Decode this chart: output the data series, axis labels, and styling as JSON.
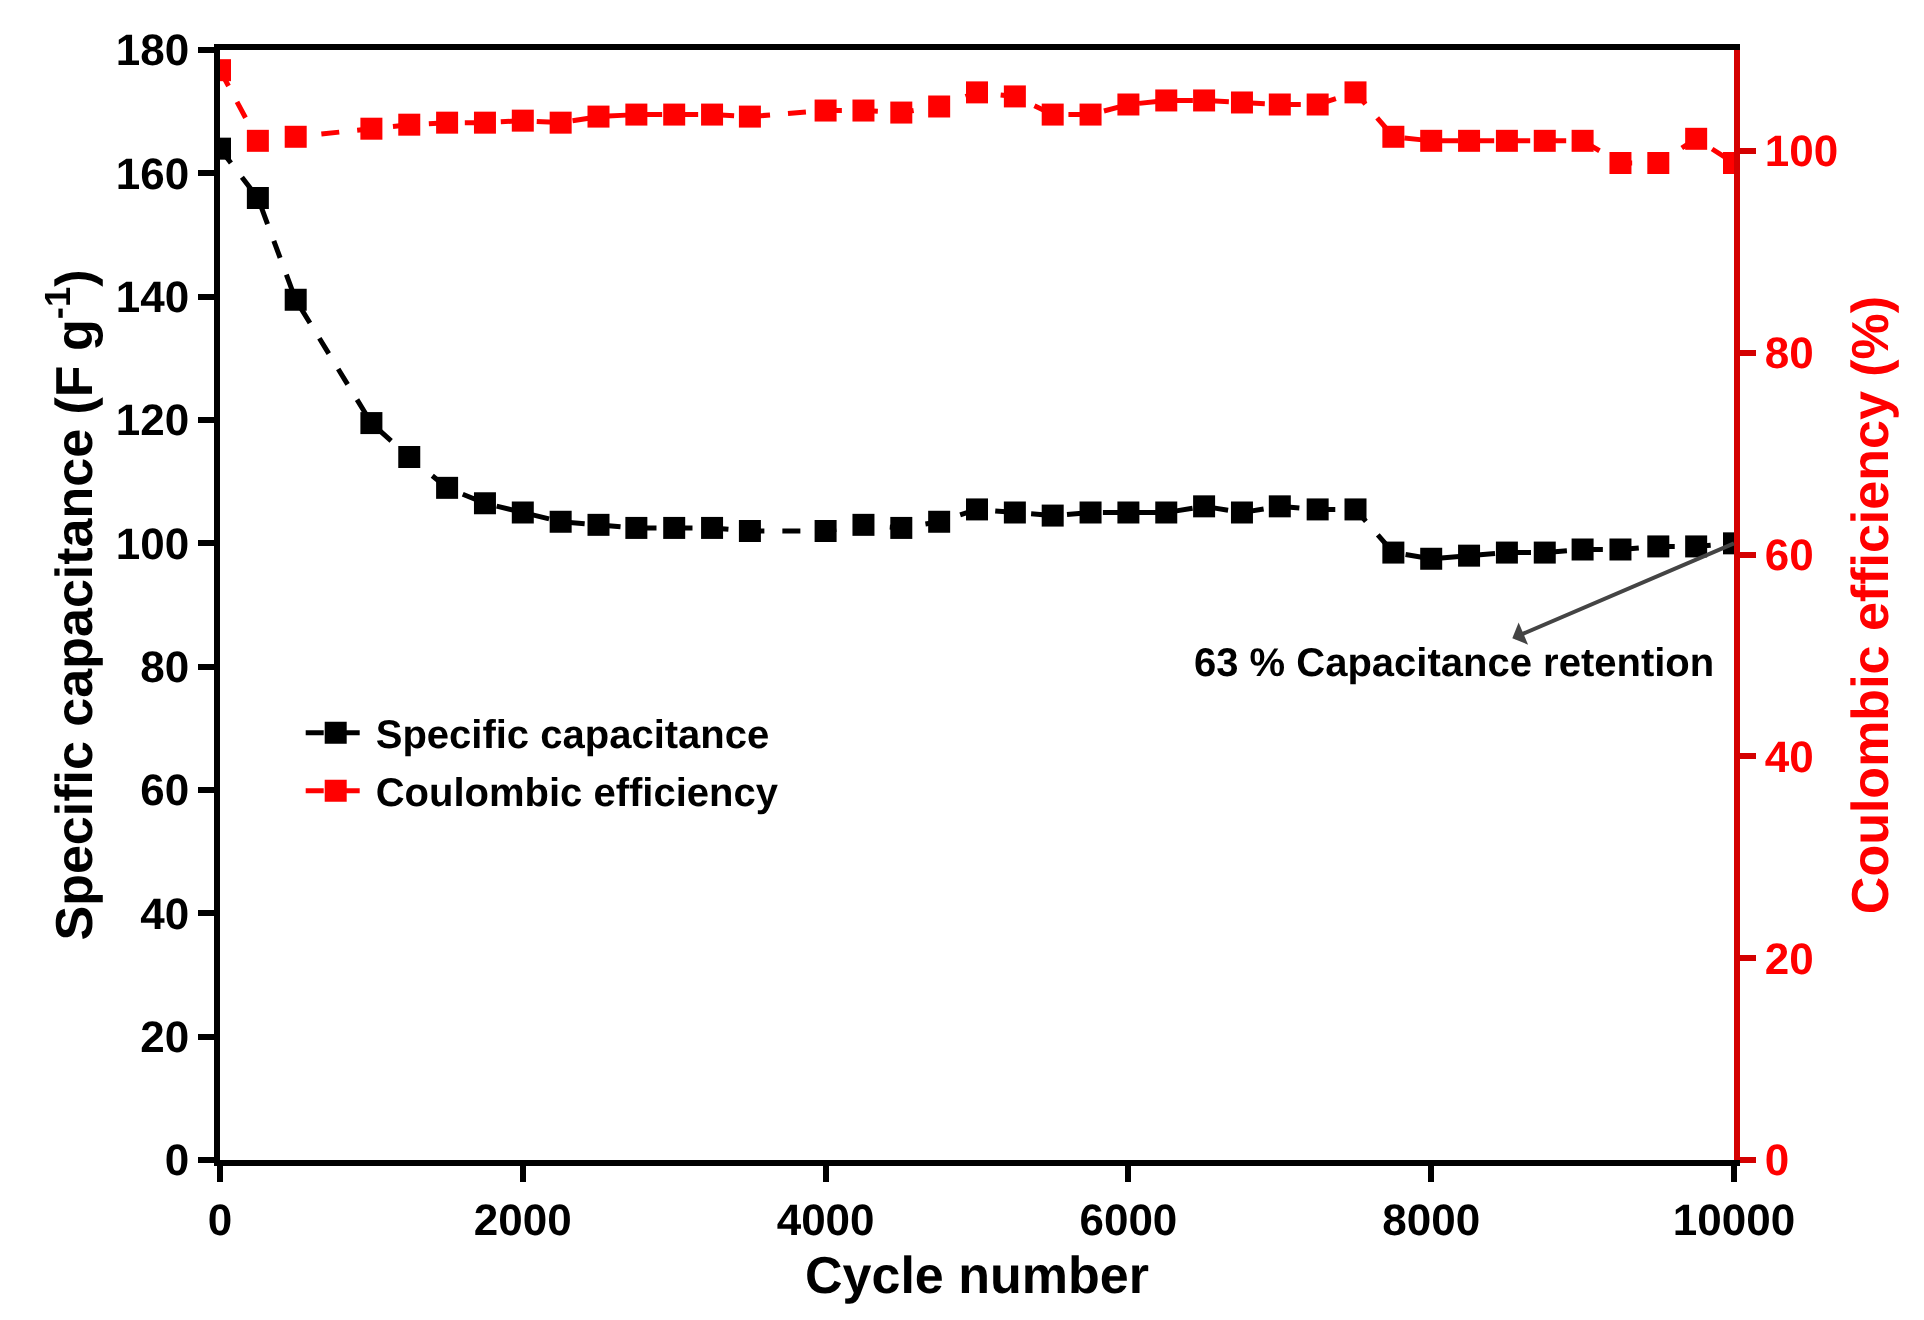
{
  "chart_data": {
    "type": "line",
    "xlabel": "Cycle number",
    "ylabel": "Specific capacitance (F g$^{-1}$)",
    "y2label": "Coulombic efficiency (%)",
    "x": [
      0,
      250,
      500,
      1000,
      1250,
      1500,
      1750,
      2000,
      2250,
      2500,
      2750,
      3000,
      3250,
      3500,
      4000,
      4250,
      4500,
      4750,
      5000,
      5250,
      5500,
      5750,
      6000,
      6250,
      6500,
      6750,
      7000,
      7250,
      7500,
      7750,
      8000,
      8250,
      8500,
      8750,
      9000,
      9250,
      9500,
      9750,
      10000
    ],
    "series": [
      {
        "name": "Specific capacitance",
        "color": "#000000",
        "values": [
          164,
          156,
          139.5,
          119.5,
          114,
          109,
          106.5,
          105,
          103.5,
          103,
          102.5,
          102.5,
          102.5,
          102,
          102,
          103,
          102.5,
          103.5,
          105.5,
          105,
          104.5,
          105,
          105,
          105,
          106,
          105,
          106,
          105.5,
          105.5,
          98.5,
          97.5,
          98,
          98.5,
          98.5,
          99,
          99,
          99.5,
          99.5,
          100
        ]
      },
      {
        "name": "Coulombic efficiency",
        "color": "#ff0000",
        "axis": "y2",
        "values": [
          108,
          101,
          101.4,
          102.2,
          102.6,
          102.8,
          102.8,
          103,
          102.8,
          103.4,
          103.6,
          103.6,
          103.6,
          103.4,
          104,
          104,
          103.8,
          104.4,
          105.8,
          105.4,
          103.6,
          103.6,
          104.6,
          105,
          105,
          104.8,
          104.6,
          104.6,
          105.8,
          101.4,
          101,
          101,
          101,
          101,
          101,
          98.8,
          98.8,
          101.2,
          98.8
        ]
      }
    ],
    "xlim": [
      0,
      10000
    ],
    "xticks": [
      0,
      2000,
      4000,
      6000,
      8000,
      10000
    ],
    "ylim": [
      0,
      180
    ],
    "yticks": [
      0,
      20,
      40,
      60,
      80,
      100,
      120,
      140,
      160,
      180
    ],
    "y2lim": [
      0,
      110
    ],
    "y2ticks": [
      0,
      20,
      40,
      60,
      80,
      100
    ],
    "annotations": [
      {
        "text": "63 % Capacitance retention",
        "x": 10000,
        "y": 100
      }
    ],
    "legend": "left",
    "marker": "square",
    "line_style": "dashed",
    "grid": false
  }
}
